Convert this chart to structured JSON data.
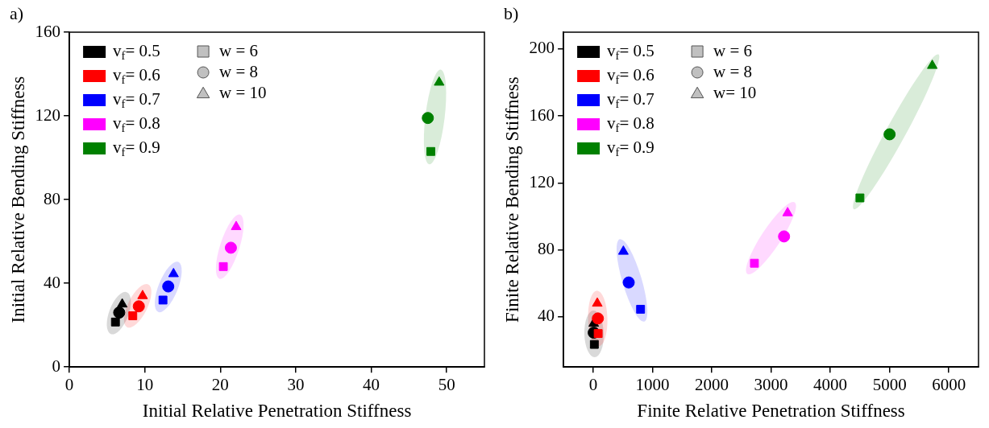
{
  "chart_data": [
    {
      "type": "scatter",
      "annotations": [
        "a)"
      ],
      "xlabel": "Initial Relative Penetration Stiffness",
      "ylabel": "Initial Relative Bending Stiffness",
      "xlim": [
        0,
        55
      ],
      "xticks": [
        0,
        10,
        20,
        30,
        40,
        50
      ],
      "ylim": [
        0,
        160
      ],
      "yticks": [
        0,
        40,
        80,
        120,
        160
      ],
      "legend": "top left",
      "series": [
        {
          "name": "v$_{f}$= 0.5",
          "color": "#000000",
          "marker": [
            "square",
            "circle",
            "triangle"
          ],
          "x": [
            6.1,
            6.6,
            7.0
          ],
          "values": [
            21.5,
            26,
            30
          ]
        },
        {
          "name": "v$_{f}$= 0.6",
          "color": "#ff0000",
          "marker": [
            "square",
            "circle",
            "triangle"
          ],
          "x": [
            8.4,
            9.2,
            9.7
          ],
          "values": [
            24.5,
            29,
            34
          ]
        },
        {
          "name": "v$_{f}$= 0.7",
          "color": "#0000ff",
          "marker": [
            "square",
            "circle",
            "triangle"
          ],
          "x": [
            12.4,
            13.1,
            13.8
          ],
          "values": [
            32,
            38.5,
            44.5
          ]
        },
        {
          "name": "v$_{f}$= 0.8",
          "color": "#ff00ff",
          "marker": [
            "square",
            "circle",
            "triangle"
          ],
          "x": [
            20.4,
            21.4,
            22.1
          ],
          "values": [
            48,
            57,
            67
          ]
        },
        {
          "name": "v$_{f}$= 0.9",
          "color": "#008000",
          "marker": [
            "square",
            "circle",
            "triangle"
          ],
          "x": [
            47.9,
            47.5,
            49.0
          ],
          "values": [
            103,
            119,
            136
          ]
        },
        {
          "name": "w = 6",
          "color": "#c0c0c0",
          "marker": "square"
        },
        {
          "name": "w = 8",
          "color": "#c0c0c0",
          "marker": "circle"
        },
        {
          "name": "w = 10",
          "color": "#c0c0c0",
          "marker": "triangle"
        }
      ]
    },
    {
      "type": "scatter",
      "annotations": [
        "b)"
      ],
      "xlabel": "Finite Relative Penetration Stiffness",
      "ylabel": "Finite Relative Bending Stiffness",
      "xlim": [
        -500,
        6500
      ],
      "xticks": [
        0,
        1000,
        2000,
        3000,
        4000,
        5000,
        6000
      ],
      "ylim": [
        10,
        210
      ],
      "yticks": [
        40,
        80,
        120,
        160,
        200
      ],
      "legend": "top left",
      "series": [
        {
          "name": "v$_{f}$= 0.5",
          "color": "#000000",
          "marker": [
            "square",
            "circle",
            "triangle"
          ],
          "x": [
            20,
            10,
            10
          ],
          "values": [
            23.5,
            30.5,
            36
          ]
        },
        {
          "name": "v$_{f}$= 0.6",
          "color": "#ff0000",
          "marker": [
            "square",
            "circle",
            "triangle"
          ],
          "x": [
            85,
            80,
            70
          ],
          "values": [
            30,
            39,
            48
          ]
        },
        {
          "name": "v$_{f}$= 0.7",
          "color": "#0000ff",
          "marker": [
            "square",
            "circle",
            "triangle"
          ],
          "x": [
            800,
            600,
            510
          ],
          "values": [
            44.5,
            60.5,
            79
          ]
        },
        {
          "name": "v$_{f}$= 0.8",
          "color": "#ff00ff",
          "marker": [
            "square",
            "circle",
            "triangle"
          ],
          "x": [
            2720,
            3220,
            3280
          ],
          "values": [
            72,
            88,
            102
          ]
        },
        {
          "name": "v$_{f}$= 0.9",
          "color": "#008000",
          "marker": [
            "square",
            "circle",
            "triangle"
          ],
          "x": [
            4500,
            5000,
            5720
          ],
          "values": [
            111,
            149,
            190
          ]
        },
        {
          "name": "w = 6",
          "color": "#c0c0c0",
          "marker": "square"
        },
        {
          "name": "w = 8",
          "color": "#c0c0c0",
          "marker": "circle"
        },
        {
          "name": "w= 10",
          "color": "#c0c0c0",
          "marker": "triangle"
        }
      ]
    }
  ]
}
